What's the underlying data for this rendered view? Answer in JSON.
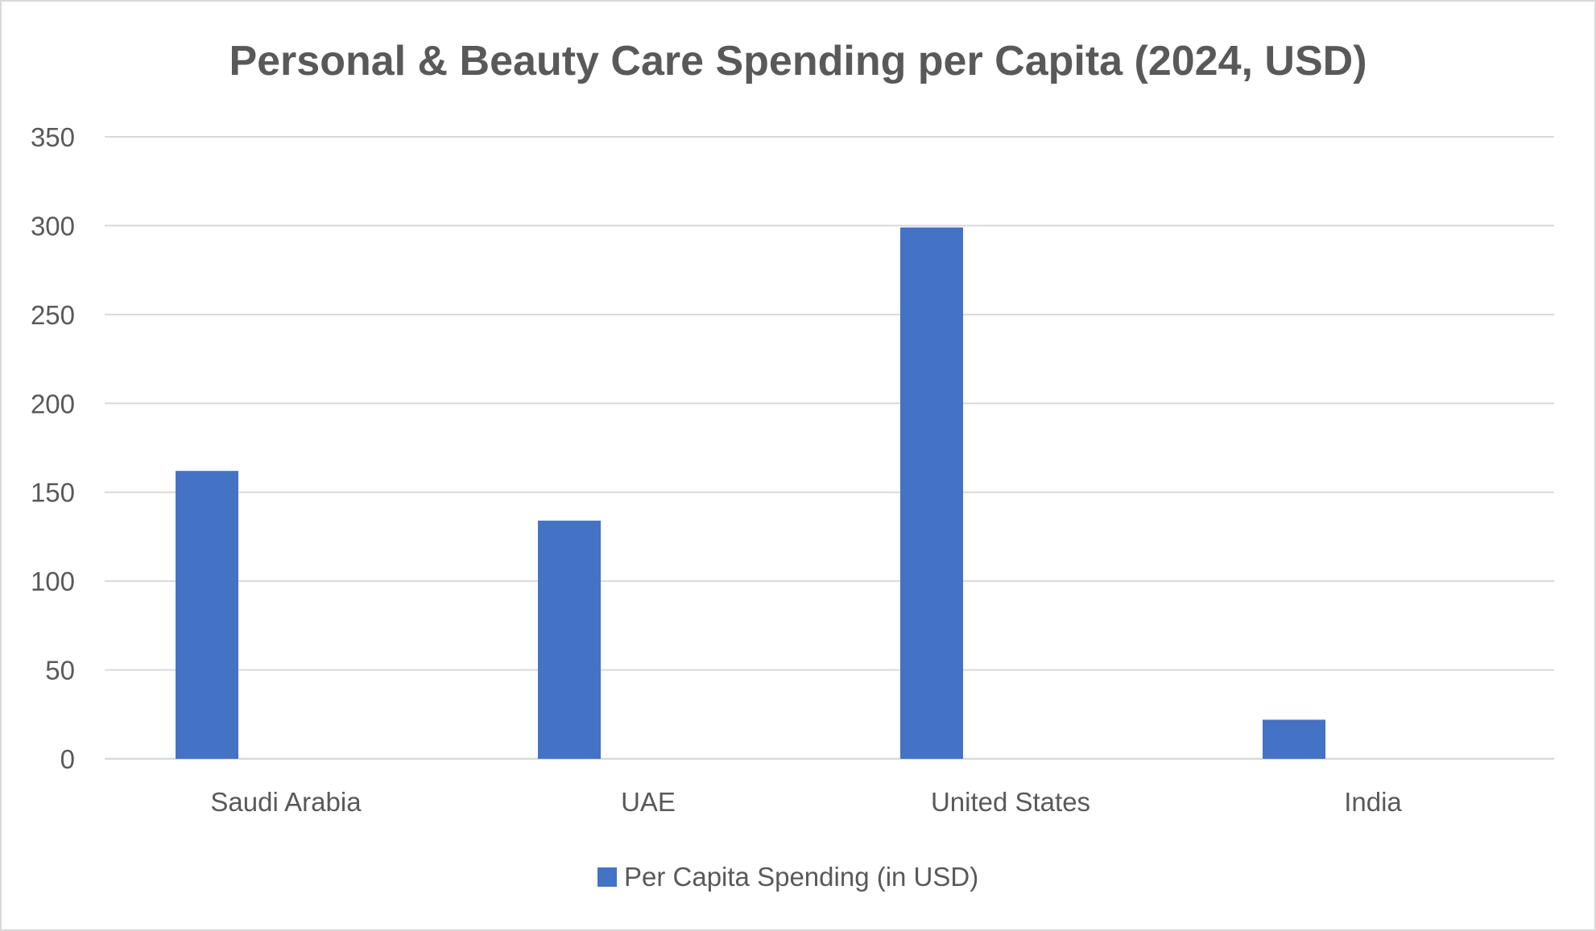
{
  "chart_data": {
    "type": "bar",
    "title": "Personal & Beauty Care Spending per Capita (2024, USD)",
    "xlabel": "",
    "ylabel": "",
    "categories": [
      "Saudi Arabia",
      "UAE",
      "United States",
      "India"
    ],
    "series": [
      {
        "name": "Per Capita Spending (in USD)",
        "color": "#4472c4",
        "values": [
          162,
          134,
          299,
          22
        ]
      }
    ],
    "ylim": [
      0,
      350
    ],
    "yticks": [
      "0",
      "50",
      "100",
      "150",
      "200",
      "250",
      "300",
      "350"
    ],
    "grid": true,
    "legend_position": "bottom"
  }
}
